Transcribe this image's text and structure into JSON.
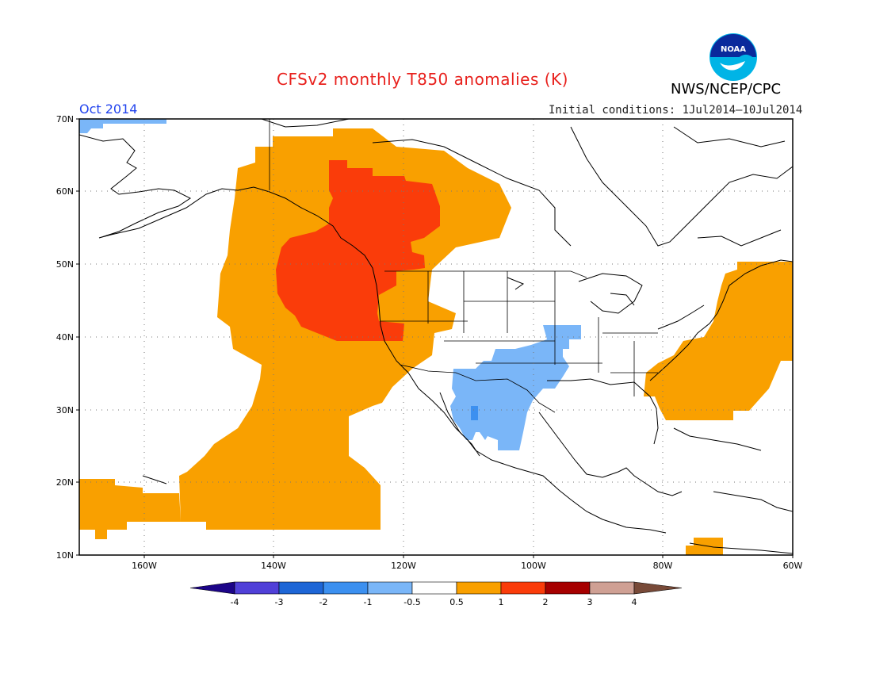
{
  "header": {
    "title": "CFSv2 monthly T850 anomalies (K)",
    "org": "NWS/NCEP/CPC",
    "logo_text": "NOAA",
    "month": "Oct 2014",
    "initial_conditions": "Initial conditions: 1Jul2014–10Jul2014"
  },
  "map": {
    "lat_labels": [
      "70N",
      "60N",
      "50N",
      "40N",
      "30N",
      "20N",
      "10N"
    ],
    "lon_labels": [
      "160W",
      "140W",
      "120W",
      "100W",
      "80W",
      "60W"
    ],
    "background_color": "#ffffff",
    "grid": "dotted"
  },
  "colorbar": {
    "colors": [
      "#1c0488",
      "#5040d8",
      "#1e66d6",
      "#3c90f0",
      "#7ab6f8",
      "#ffffff",
      "#f9a000",
      "#fa3c0a",
      "#a60000",
      "#cfa094",
      "#784a38"
    ],
    "labels": [
      "-4",
      "-3",
      "-2",
      "-1",
      "-0.5",
      "0.5",
      "1",
      "2",
      "3",
      "4"
    ]
  },
  "anomaly_regions": [
    {
      "name": "Warm anomaly over NE Pacific and western North America",
      "category": "0.5 to 1"
    },
    {
      "name": "Strong warm anomaly over Pacific Northwest and western Canada",
      "category": "1 to 2"
    },
    {
      "name": "Cool anomaly over southwestern US and northern Mexico",
      "category": "-1 to -0.5"
    },
    {
      "name": "Warm anomaly over western Atlantic off US East Coast",
      "category": "0.5 to 1"
    }
  ]
}
